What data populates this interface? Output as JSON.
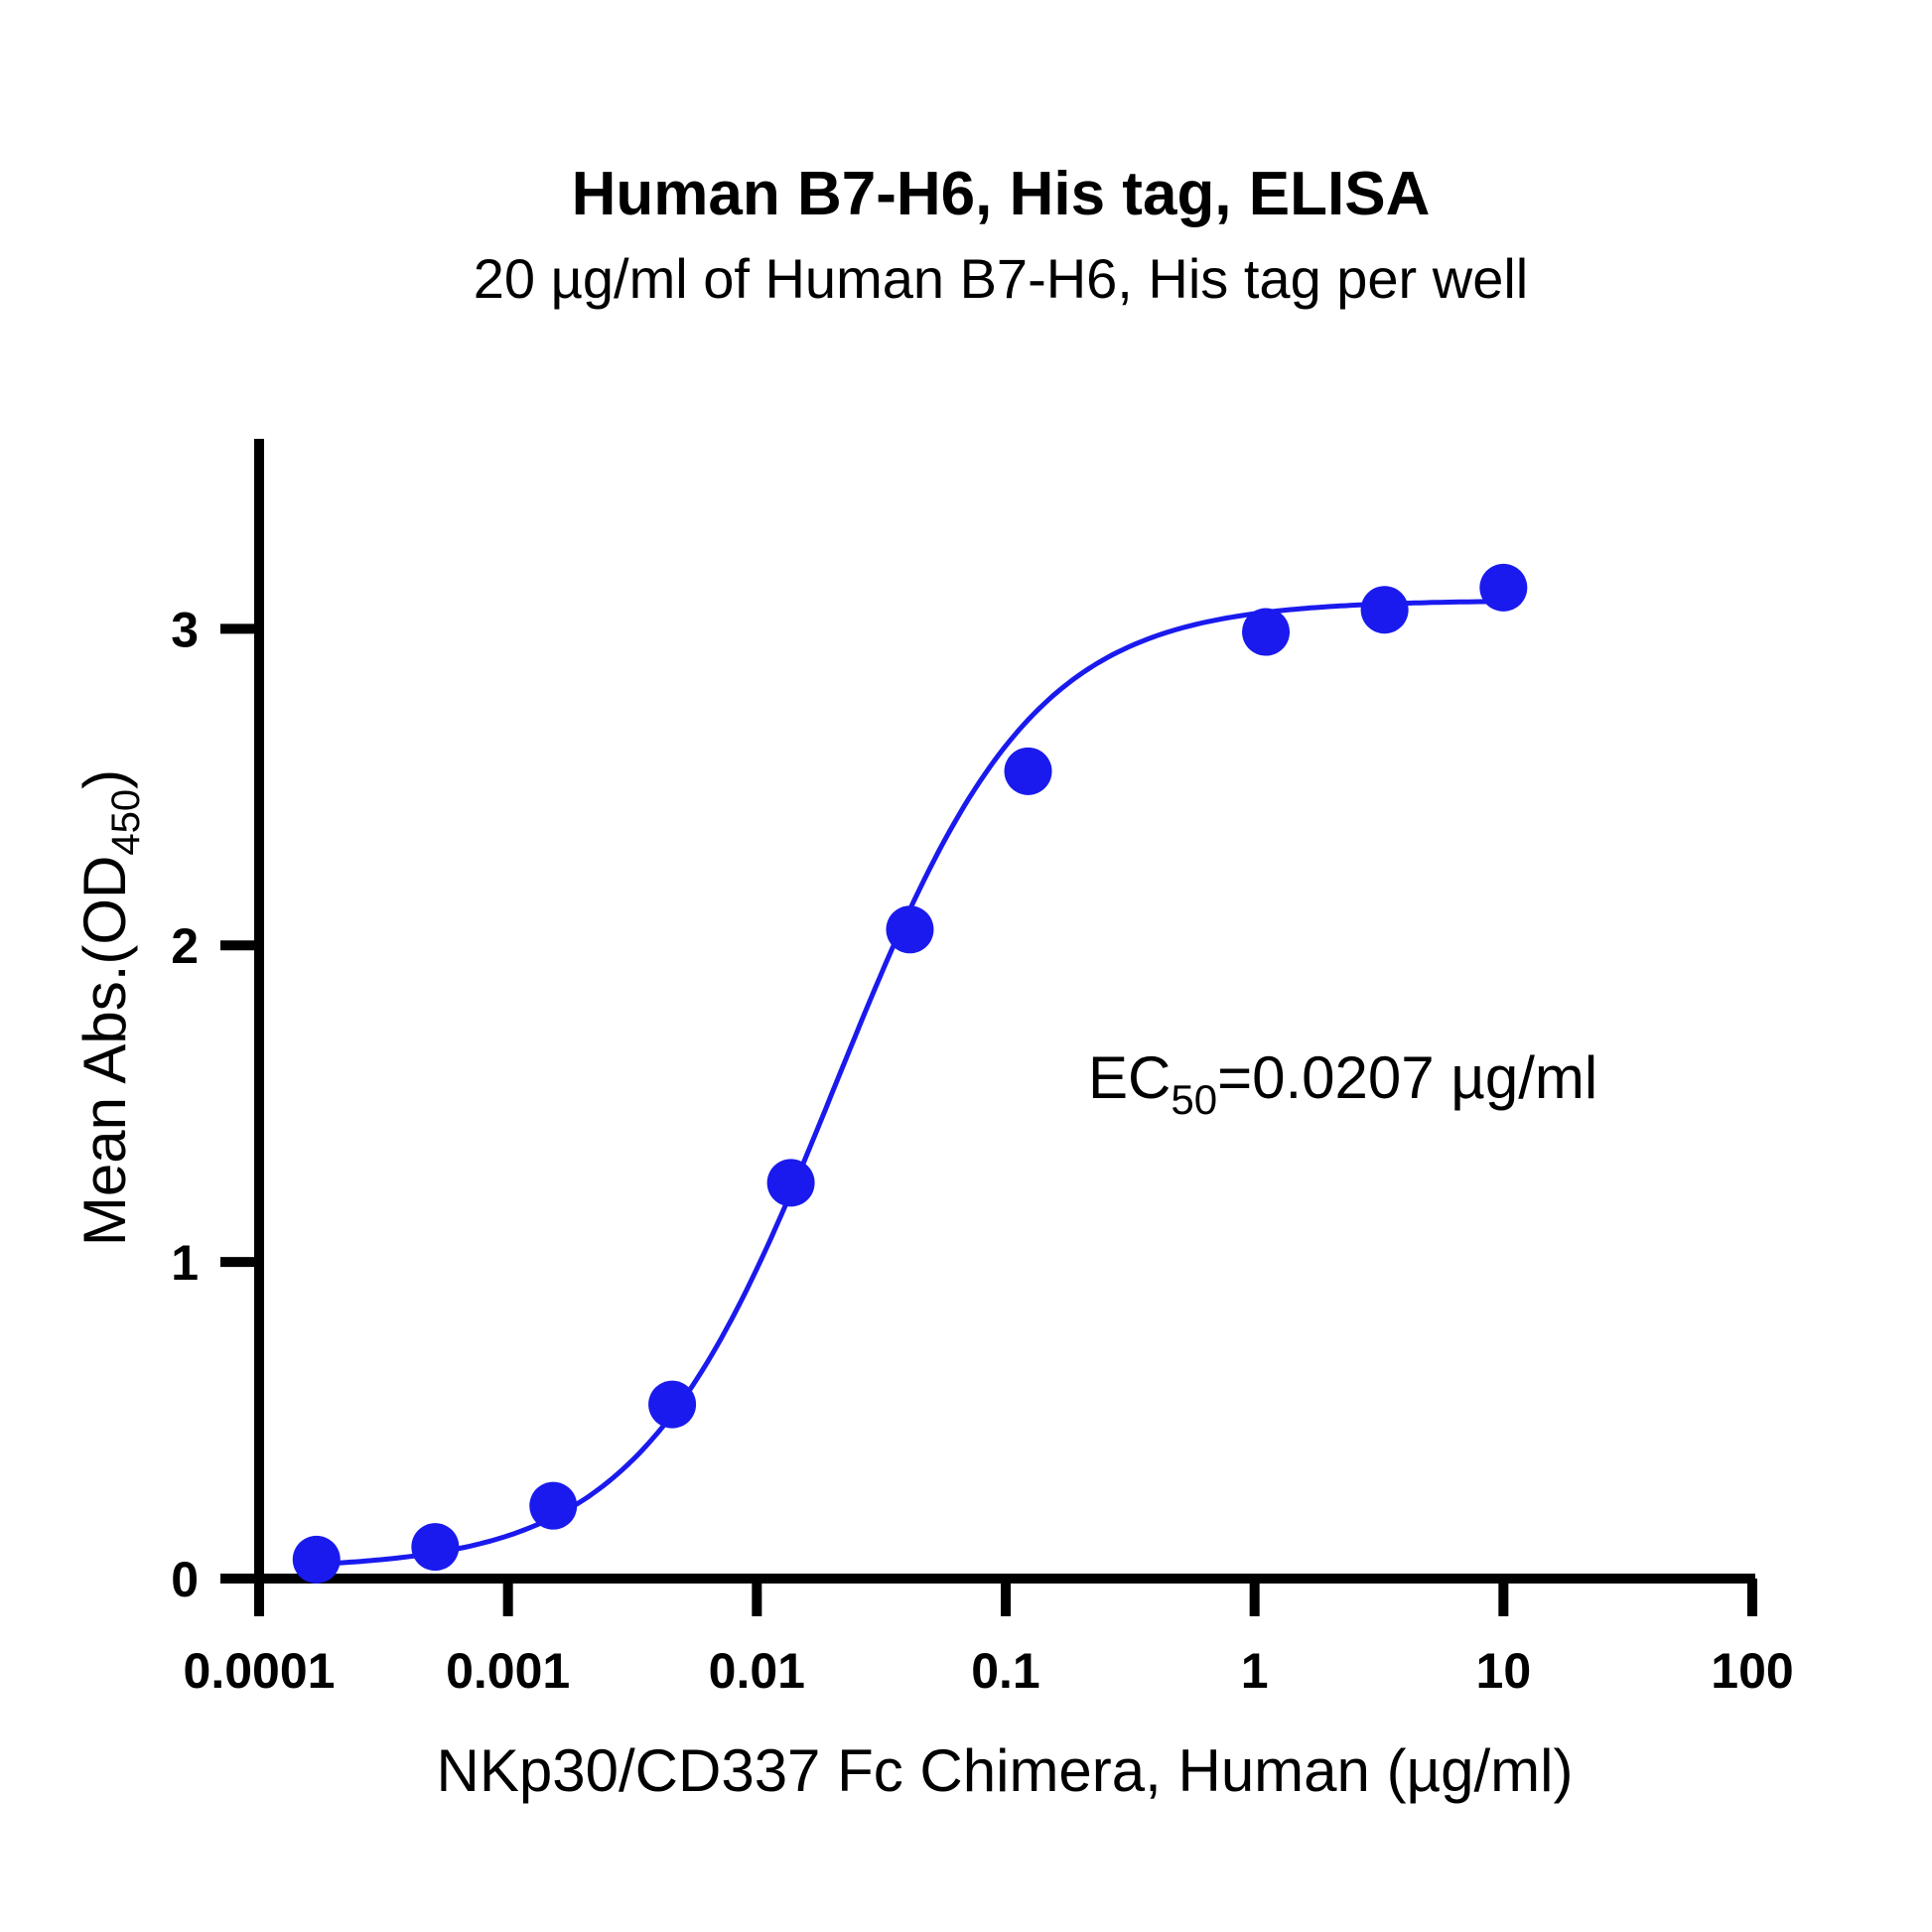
{
  "chart_data": {
    "type": "scatter",
    "title": "Human B7-H6, His tag, ELISA",
    "subtitle": "20 µg/ml of Human B7-H6, His tag per well",
    "xlabel": "NKp30/CD337 Fc Chimera, Human (µg/ml)",
    "ylabel_main": "Mean Abs.(OD",
    "ylabel_sub": "450",
    "ylabel_close": ")",
    "x_scale": "log",
    "xlim": [
      0.0001,
      100
    ],
    "ylim": [
      0,
      3.6
    ],
    "x_ticks": [
      0.0001,
      0.001,
      0.01,
      0.1,
      1,
      10,
      100
    ],
    "x_tick_labels": [
      "0.0001",
      "0.001",
      "0.01",
      "0.1",
      "1",
      "10",
      "100"
    ],
    "y_ticks": [
      0,
      1,
      2,
      3
    ],
    "y_tick_labels": [
      "0",
      "1",
      "2",
      "3"
    ],
    "grid": false,
    "legend": "none",
    "series": [
      {
        "color": "#1a1aee",
        "x": [
          0.00017,
          0.00051,
          0.00152,
          0.00457,
          0.0137,
          0.0412,
          0.123,
          1.11,
          3.33,
          10
        ],
        "y": [
          0.06,
          0.1,
          0.23,
          0.55,
          1.25,
          2.05,
          2.55,
          2.99,
          3.06,
          3.13
        ]
      }
    ],
    "fit_curve": {
      "model": "4PL",
      "bottom": 0.03,
      "top": 3.09,
      "ec50": 0.0207,
      "hill": 1.1,
      "color": "#1a1aee"
    },
    "annotation": {
      "prefix": "EC",
      "sub": "50",
      "suffix": "=0.0207 µg/ml"
    }
  }
}
